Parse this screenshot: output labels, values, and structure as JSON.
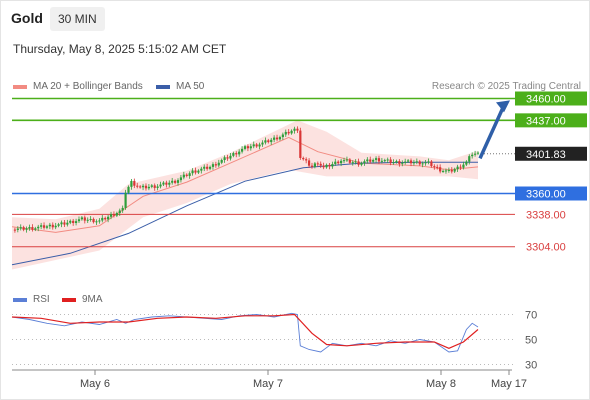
{
  "header": {
    "instrument": "Gold",
    "timeframe": "30 MIN",
    "datetime": "Thursday, May 8, 2025 5:15:02 AM CET",
    "credit": "Research © 2025 Trading Central"
  },
  "legend": {
    "bollinger": {
      "label": "MA 20 + Bollinger Bands",
      "color": "#f28b82"
    },
    "ma50": {
      "label": "MA 50",
      "color": "#3b5ea8"
    },
    "rsi": {
      "label": "RSI",
      "color": "#5b7fd6"
    },
    "rsi_ma": {
      "label": "9MA",
      "color": "#e02020"
    }
  },
  "chart_data": [
    {
      "type": "candlestick",
      "x_ticks": [
        "May 6",
        "May 7",
        "May 8",
        "May 17"
      ],
      "ylim": [
        3270,
        3470
      ],
      "current_price": {
        "value": 3401.83,
        "label": "3401.83",
        "color": "#222222"
      },
      "levels": [
        {
          "value": 3460.0,
          "label": "3460.00",
          "role": "resistance",
          "color": "#4caf1a"
        },
        {
          "value": 3437.0,
          "label": "3437.00",
          "role": "resistance",
          "color": "#4caf1a"
        },
        {
          "value": 3360.0,
          "label": "3360.00",
          "role": "pivot",
          "color": "#2f6fe0"
        },
        {
          "value": 3338.0,
          "label": "3338.00",
          "role": "support",
          "color": "#d94040"
        },
        {
          "value": 3304.0,
          "label": "3304.00",
          "role": "support",
          "color": "#d94040"
        }
      ],
      "forecast_arrow": {
        "from": 3397,
        "to": 3458,
        "color": "#2f5fa8"
      },
      "price_path": [
        [
          0,
          3322
        ],
        [
          8,
          3324
        ],
        [
          16,
          3327
        ],
        [
          24,
          3333
        ],
        [
          30,
          3331
        ],
        [
          36,
          3340
        ],
        [
          38,
          3343
        ],
        [
          39,
          3362
        ],
        [
          41,
          3372
        ],
        [
          44,
          3366
        ],
        [
          50,
          3368
        ],
        [
          56,
          3373
        ],
        [
          62,
          3383
        ],
        [
          68,
          3388
        ],
        [
          74,
          3398
        ],
        [
          80,
          3408
        ],
        [
          86,
          3413
        ],
        [
          92,
          3420
        ],
        [
          96,
          3426
        ],
        [
          98,
          3428
        ],
        [
          99,
          3398
        ],
        [
          101,
          3393
        ],
        [
          103,
          3388
        ],
        [
          105,
          3393
        ],
        [
          107,
          3387
        ],
        [
          113,
          3395
        ],
        [
          119,
          3392
        ],
        [
          125,
          3396
        ],
        [
          131,
          3393
        ],
        [
          137,
          3393
        ],
        [
          143,
          3392
        ],
        [
          145,
          3388
        ],
        [
          147,
          3385
        ],
        [
          150,
          3383
        ],
        [
          153,
          3387
        ],
        [
          156,
          3393
        ],
        [
          158,
          3402
        ],
        [
          160,
          3401.83
        ]
      ],
      "ma50_path": [
        [
          0,
          3285
        ],
        [
          20,
          3297
        ],
        [
          40,
          3318
        ],
        [
          60,
          3347
        ],
        [
          80,
          3373
        ],
        [
          100,
          3387
        ],
        [
          120,
          3392
        ],
        [
          140,
          3393
        ],
        [
          160,
          3393
        ]
      ],
      "bb_mid_path": [
        [
          0,
          3325
        ],
        [
          15,
          3319
        ],
        [
          30,
          3326
        ],
        [
          45,
          3357
        ],
        [
          60,
          3372
        ],
        [
          75,
          3392
        ],
        [
          95,
          3419
        ],
        [
          105,
          3404
        ],
        [
          120,
          3392
        ],
        [
          140,
          3389
        ],
        [
          150,
          3385
        ],
        [
          160,
          3388
        ]
      ],
      "bb_upper_path": [
        [
          0,
          3335
        ],
        [
          15,
          3333
        ],
        [
          30,
          3344
        ],
        [
          40,
          3370
        ],
        [
          60,
          3384
        ],
        [
          75,
          3403
        ],
        [
          98,
          3437
        ],
        [
          108,
          3425
        ],
        [
          120,
          3403
        ],
        [
          140,
          3399
        ],
        [
          150,
          3395
        ],
        [
          160,
          3405
        ]
      ],
      "bb_lower_path": [
        [
          0,
          3280
        ],
        [
          15,
          3290
        ],
        [
          30,
          3300
        ],
        [
          45,
          3335
        ],
        [
          60,
          3350
        ],
        [
          75,
          3370
        ],
        [
          95,
          3385
        ],
        [
          108,
          3378
        ],
        [
          120,
          3378
        ],
        [
          140,
          3378
        ],
        [
          150,
          3378
        ],
        [
          160,
          3375
        ]
      ]
    },
    {
      "type": "line",
      "indicator": "RSI",
      "ylim": [
        20,
        80
      ],
      "ticks": [
        70,
        50,
        30
      ],
      "series": [
        {
          "name": "RSI",
          "values": [
            [
              0,
              68
            ],
            [
              6,
              66
            ],
            [
              12,
              63
            ],
            [
              18,
              61
            ],
            [
              24,
              64
            ],
            [
              30,
              62
            ],
            [
              36,
              66
            ],
            [
              39,
              63
            ],
            [
              42,
              66
            ],
            [
              48,
              68
            ],
            [
              54,
              69
            ],
            [
              60,
              68
            ],
            [
              66,
              67
            ],
            [
              72,
              66
            ],
            [
              78,
              69
            ],
            [
              84,
              70
            ],
            [
              90,
              68
            ],
            [
              96,
              71
            ],
            [
              98,
              70
            ],
            [
              99,
              45
            ],
            [
              102,
              42
            ],
            [
              106,
              40
            ],
            [
              110,
              47
            ],
            [
              115,
              45
            ],
            [
              120,
              47
            ],
            [
              125,
              45
            ],
            [
              130,
              49
            ],
            [
              135,
              47
            ],
            [
              140,
              50
            ],
            [
              145,
              48
            ],
            [
              150,
              40
            ],
            [
              153,
              41
            ],
            [
              156,
              58
            ],
            [
              158,
              63
            ],
            [
              160,
              60
            ]
          ]
        },
        {
          "name": "9MA",
          "values": [
            [
              0,
              68
            ],
            [
              10,
              67
            ],
            [
              20,
              63
            ],
            [
              30,
              64
            ],
            [
              40,
              64
            ],
            [
              50,
              67
            ],
            [
              60,
              68
            ],
            [
              70,
              67
            ],
            [
              80,
              69
            ],
            [
              90,
              69
            ],
            [
              97,
              70
            ],
            [
              103,
              55
            ],
            [
              108,
              46
            ],
            [
              115,
              45
            ],
            [
              125,
              47
            ],
            [
              135,
              48
            ],
            [
              145,
              48
            ],
            [
              150,
              43
            ],
            [
              155,
              48
            ],
            [
              160,
              58
            ]
          ]
        }
      ]
    }
  ]
}
